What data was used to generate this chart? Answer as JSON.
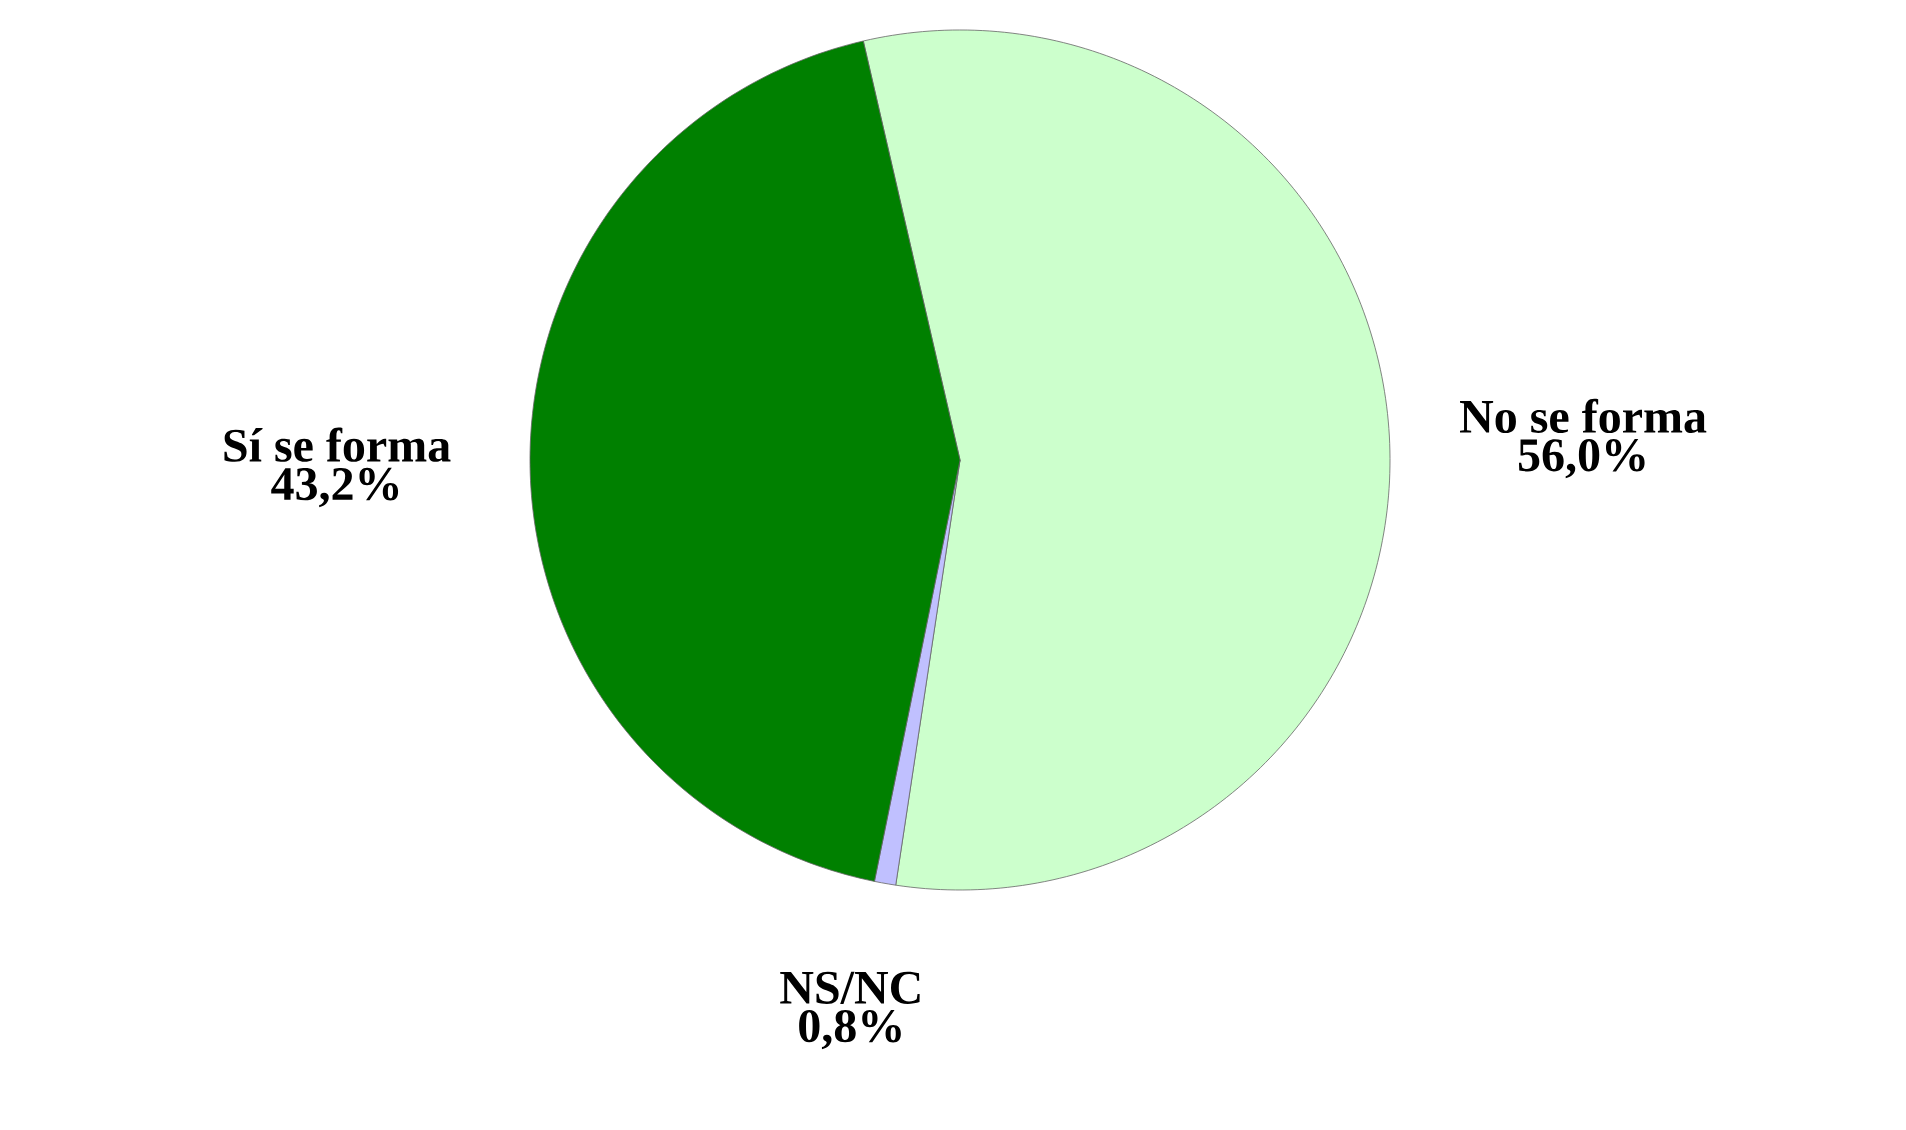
{
  "chart_data": {
    "type": "pie",
    "categories": [
      "No se forma",
      "NS/NC",
      "Sí se forma"
    ],
    "values": [
      56.0,
      0.8,
      43.2
    ],
    "value_labels": [
      "56,0%",
      "0,8%",
      "43,2%"
    ],
    "colors": [
      "#ccffcc",
      "#c0c0ff",
      "#008000"
    ]
  }
}
